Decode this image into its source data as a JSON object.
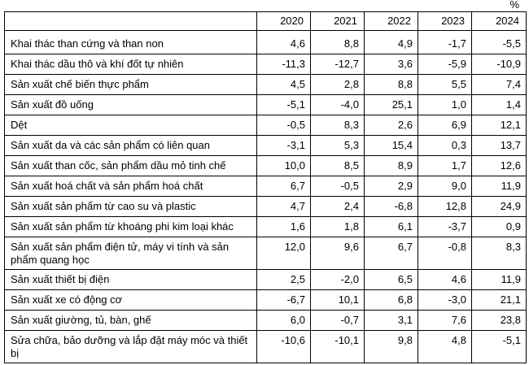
{
  "unit_label": "%",
  "colors": {
    "border": "#000000",
    "text": "#000000",
    "background": "#ffffff"
  },
  "table": {
    "corner_label": "",
    "col_headers": [
      "2020",
      "2021",
      "2022",
      "2023",
      "2024"
    ],
    "rows": [
      {
        "label": "Khai thác than cứng và than non",
        "values": [
          "4,6",
          "8,8",
          "4,9",
          "-1,7",
          "-5,5"
        ]
      },
      {
        "label": "Khai thác dầu thô và khí đốt tự nhiên",
        "values": [
          "-11,3",
          "-12,7",
          "3,6",
          "-5,9",
          "-10,9"
        ]
      },
      {
        "label": "Sản xuất chế biến thực phẩm",
        "values": [
          "4,5",
          "2,8",
          "8,8",
          "5,5",
          "7,4"
        ]
      },
      {
        "label": "Sản xuất đồ uống",
        "values": [
          "-5,1",
          "-4,0",
          "25,1",
          "1,0",
          "1,4"
        ]
      },
      {
        "label": "Dệt",
        "values": [
          "-0,5",
          "8,3",
          "2,6",
          "6,9",
          "12,1"
        ]
      },
      {
        "label": "Sản xuất da và các sản phẩm có liên quan",
        "values": [
          "-3,1",
          "5,3",
          "15,4",
          "0,3",
          "13,7"
        ]
      },
      {
        "label": "Sản xuất than cốc, sản phẩm dầu mỏ tinh chế",
        "values": [
          "10,0",
          "8,5",
          "8,9",
          "1,7",
          "12,6"
        ]
      },
      {
        "label": "Sản xuất hoá chất và sản phẩm hoá chất",
        "values": [
          "6,7",
          "-0,5",
          "2,9",
          "9,0",
          "11,9"
        ]
      },
      {
        "label": "Sản xuất sản phẩm từ cao su và plastic",
        "values": [
          "4,7",
          "2,4",
          "-6,8",
          "12,8",
          "24,9"
        ]
      },
      {
        "label": "Sản xuất sản phẩm từ khoáng phi kim loại khác",
        "values": [
          "1,6",
          "1,8",
          "6,1",
          "-3,7",
          "0,9"
        ]
      },
      {
        "label": "Sản xuất sản phẩm điện tử, máy vi tính và sản phẩm quang học",
        "values": [
          "12,0",
          "9,6",
          "6,7",
          "-0,8",
          "8,3"
        ]
      },
      {
        "label": "Sản xuất thiết bị điện",
        "values": [
          "2,5",
          "-2,0",
          "6,5",
          "4,6",
          "11,9"
        ]
      },
      {
        "label": "Sản xuất xe có động cơ",
        "values": [
          "-6,7",
          "10,1",
          "6,8",
          "-3,0",
          "21,1"
        ]
      },
      {
        "label": "Sản xuất giường, tủ, bàn, ghế",
        "values": [
          "6,0",
          "-0,7",
          "3,1",
          "7,6",
          "23,8"
        ]
      },
      {
        "label": "Sửa chữa, bảo dưỡng và lắp đặt máy móc và thiết bị",
        "values": [
          "-10,6",
          "-10,1",
          "9,8",
          "4,8",
          "-5,1"
        ]
      }
    ]
  },
  "chart_data": {
    "type": "table",
    "unit": "%",
    "columns": [
      2020,
      2021,
      2022,
      2023,
      2024
    ],
    "rows": [
      {
        "label": "Khai thác than cứng và than non",
        "values": [
          4.6,
          8.8,
          4.9,
          -1.7,
          -5.5
        ]
      },
      {
        "label": "Khai thác dầu thô và khí đốt tự nhiên",
        "values": [
          -11.3,
          -12.7,
          3.6,
          -5.9,
          -10.9
        ]
      },
      {
        "label": "Sản xuất chế biến thực phẩm",
        "values": [
          4.5,
          2.8,
          8.8,
          5.5,
          7.4
        ]
      },
      {
        "label": "Sản xuất đồ uống",
        "values": [
          -5.1,
          -4.0,
          25.1,
          1.0,
          1.4
        ]
      },
      {
        "label": "Dệt",
        "values": [
          -0.5,
          8.3,
          2.6,
          6.9,
          12.1
        ]
      },
      {
        "label": "Sản xuất da và các sản phẩm có liên quan",
        "values": [
          -3.1,
          5.3,
          15.4,
          0.3,
          13.7
        ]
      },
      {
        "label": "Sản xuất than cốc, sản phẩm dầu mỏ tinh chế",
        "values": [
          10.0,
          8.5,
          8.9,
          1.7,
          12.6
        ]
      },
      {
        "label": "Sản xuất hoá chất và sản phẩm hoá chất",
        "values": [
          6.7,
          -0.5,
          2.9,
          9.0,
          11.9
        ]
      },
      {
        "label": "Sản xuất sản phẩm từ cao su và plastic",
        "values": [
          4.7,
          2.4,
          -6.8,
          12.8,
          24.9
        ]
      },
      {
        "label": "Sản xuất sản phẩm từ khoáng phi kim loại khác",
        "values": [
          1.6,
          1.8,
          6.1,
          -3.7,
          0.9
        ]
      },
      {
        "label": "Sản xuất sản phẩm điện tử, máy vi tính và sản phẩm quang học",
        "values": [
          12.0,
          9.6,
          6.7,
          -0.8,
          8.3
        ]
      },
      {
        "label": "Sản xuất thiết bị điện",
        "values": [
          2.5,
          -2.0,
          6.5,
          4.6,
          11.9
        ]
      },
      {
        "label": "Sản xuất xe có động cơ",
        "values": [
          -6.7,
          10.1,
          6.8,
          -3.0,
          21.1
        ]
      },
      {
        "label": "Sản xuất giường, tủ, bàn, ghế",
        "values": [
          6.0,
          -0.7,
          3.1,
          7.6,
          23.8
        ]
      },
      {
        "label": "Sửa chữa, bảo dưỡng và lắp đặt máy móc và thiết bị",
        "values": [
          -10.6,
          -10.1,
          9.8,
          4.8,
          -5.1
        ]
      }
    ]
  }
}
